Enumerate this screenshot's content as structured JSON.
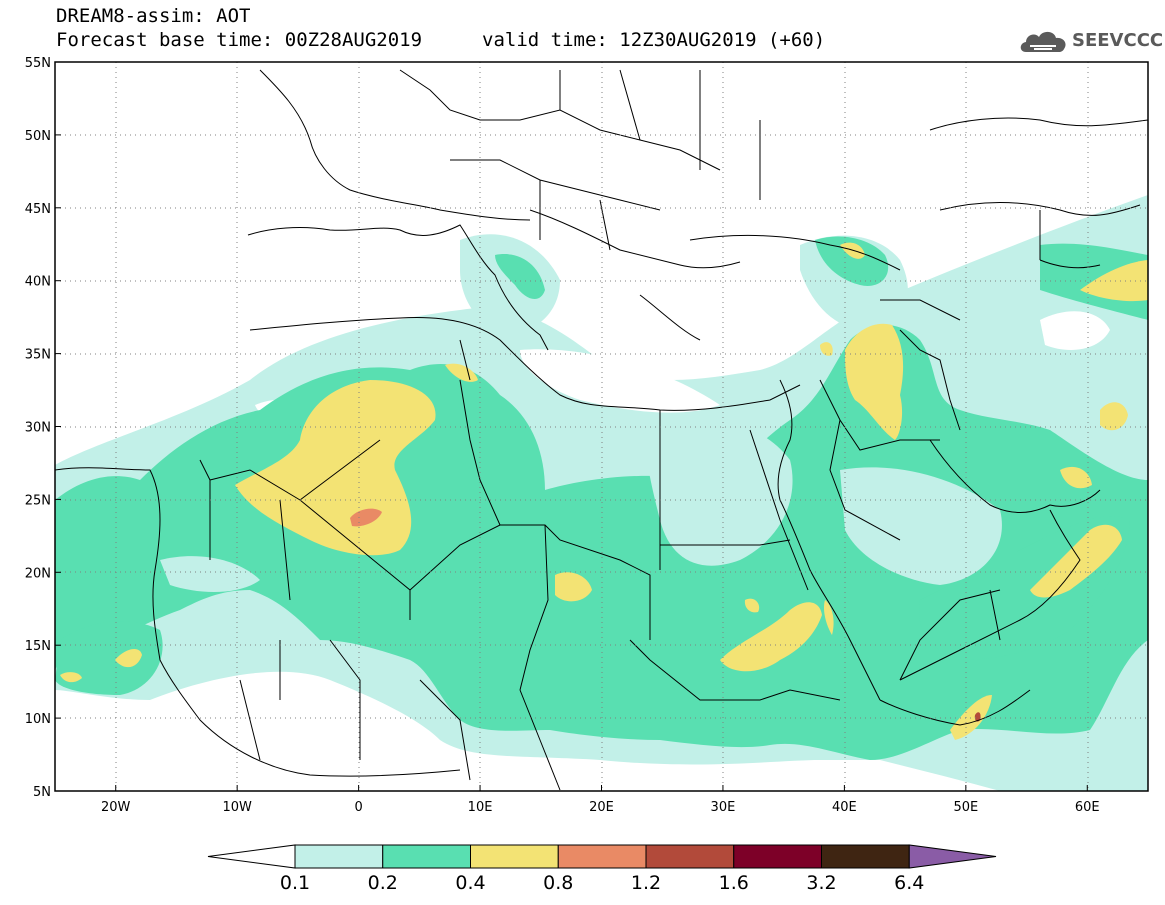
{
  "header": {
    "title": "DREAM8-assim: AOT",
    "forecast_base": "Forecast base time: 00Z28AUG2019",
    "valid_time": "valid time: 12Z30AUG2019 (+60)"
  },
  "logo": {
    "text": "SEEVCCC",
    "icon": "cloud-icon"
  },
  "map": {
    "lon_range": [
      -25,
      65
    ],
    "lat_range": [
      5,
      55
    ],
    "lon_ticks": [
      "20W",
      "10W",
      "0",
      "10E",
      "20E",
      "30E",
      "40E",
      "50E",
      "60E"
    ],
    "lat_ticks": [
      "55N",
      "50N",
      "45N",
      "40N",
      "35N",
      "30N",
      "25N",
      "20N",
      "15N",
      "10N",
      "5N"
    ],
    "grid": "dotted"
  },
  "colorbar": {
    "labels": [
      "0.1",
      "0.2",
      "0.4",
      "0.8",
      "1.2",
      "1.6",
      "3.2",
      "6.4"
    ],
    "colors": [
      "#ffffff",
      "#c2f0e8",
      "#59dfb1",
      "#f3e374",
      "#e98a65",
      "#b24a3a",
      "#7d0028",
      "#3f2512",
      "#8a5ca6"
    ]
  }
}
